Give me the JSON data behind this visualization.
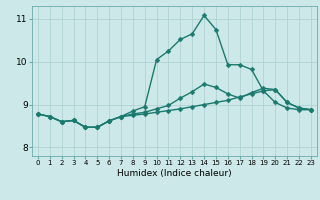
{
  "xlabel": "Humidex (Indice chaleur)",
  "xlim": [
    -0.5,
    23.5
  ],
  "ylim": [
    7.8,
    11.3
  ],
  "xticks": [
    0,
    1,
    2,
    3,
    4,
    5,
    6,
    7,
    8,
    9,
    10,
    11,
    12,
    13,
    14,
    15,
    16,
    17,
    18,
    19,
    20,
    21,
    22,
    23
  ],
  "yticks": [
    8,
    9,
    10,
    11
  ],
  "bg_color": "#cde8e8",
  "line_color": "#1a7a6e",
  "grid_color": "#aacfcf",
  "line1_x": [
    0,
    1,
    2,
    3,
    4,
    5,
    6,
    7,
    8,
    9,
    10,
    11,
    12,
    13,
    14,
    15,
    16,
    17,
    18,
    19,
    20,
    21,
    22,
    23
  ],
  "line1_y": [
    8.78,
    8.72,
    8.6,
    8.63,
    8.47,
    8.47,
    8.62,
    8.72,
    8.85,
    8.95,
    10.05,
    10.25,
    10.52,
    10.65,
    11.08,
    10.75,
    9.93,
    9.93,
    9.82,
    9.32,
    9.05,
    8.92,
    8.88,
    8.88
  ],
  "line2_x": [
    0,
    1,
    2,
    3,
    4,
    5,
    6,
    7,
    8,
    9,
    10,
    11,
    12,
    13,
    14,
    15,
    16,
    17,
    18,
    19,
    20,
    21,
    22,
    23
  ],
  "line2_y": [
    8.78,
    8.72,
    8.6,
    8.63,
    8.47,
    8.47,
    8.62,
    8.72,
    8.78,
    8.82,
    8.9,
    8.98,
    9.15,
    9.3,
    9.48,
    9.4,
    9.25,
    9.15,
    9.28,
    9.38,
    9.35,
    9.05,
    8.92,
    8.88
  ],
  "line3_x": [
    0,
    1,
    2,
    3,
    4,
    5,
    6,
    7,
    8,
    9,
    10,
    11,
    12,
    13,
    14,
    15,
    16,
    17,
    18,
    19,
    20,
    21,
    22,
    23
  ],
  "line3_y": [
    8.78,
    8.72,
    8.6,
    8.63,
    8.47,
    8.47,
    8.62,
    8.72,
    8.75,
    8.78,
    8.82,
    8.86,
    8.9,
    8.95,
    9.0,
    9.05,
    9.1,
    9.18,
    9.25,
    9.32,
    9.35,
    9.05,
    8.92,
    8.88
  ],
  "markersize": 2.5,
  "linewidth": 1.0
}
